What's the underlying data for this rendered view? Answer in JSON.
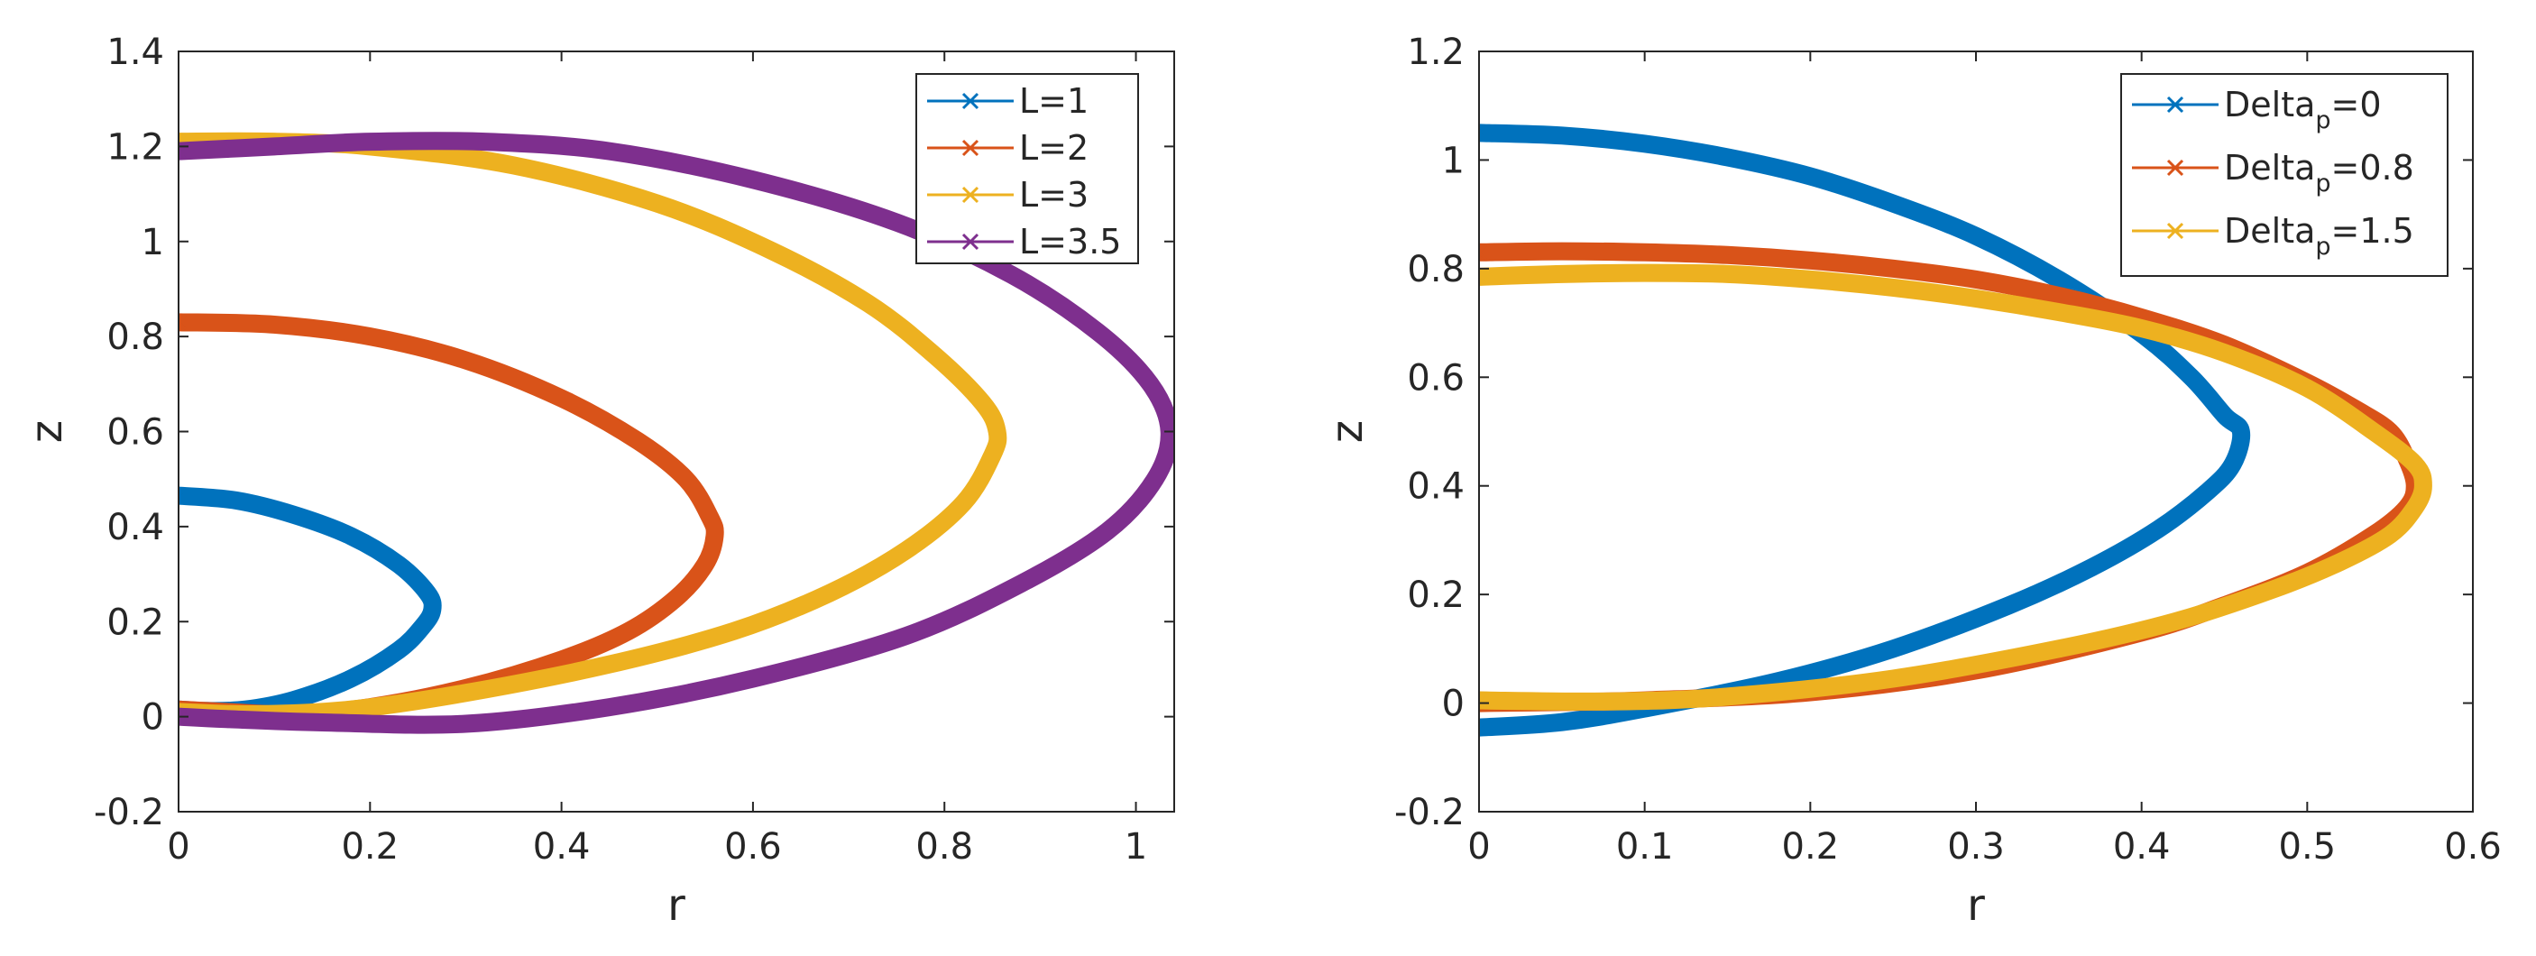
{
  "chart_data": [
    {
      "type": "line",
      "xlabel": "r",
      "ylabel": "z",
      "xlim": [
        0,
        1.04
      ],
      "ylim": [
        -0.2,
        1.4
      ],
      "xticks": [
        0,
        0.2,
        0.4,
        0.6,
        0.8,
        1
      ],
      "xtick_labels": [
        "0",
        "0.2",
        "0.4",
        "0.6",
        "0.8",
        "1"
      ],
      "yticks": [
        -0.2,
        0,
        0.2,
        0.4,
        0.6,
        0.8,
        1,
        1.2,
        1.4
      ],
      "ytick_labels": [
        "-0.2",
        "0",
        "0.2",
        "0.4",
        "0.6",
        "0.8",
        "1",
        "1.2",
        "1.4"
      ],
      "legend_position": "top-right",
      "series": [
        {
          "name": "L=1",
          "label": "L=1",
          "color": "#0072BD",
          "marker": "x",
          "points": [
            [
              0,
              0.465
            ],
            [
              0.06,
              0.455
            ],
            [
              0.12,
              0.425
            ],
            [
              0.18,
              0.38
            ],
            [
              0.23,
              0.32
            ],
            [
              0.26,
              0.26
            ],
            [
              0.265,
              0.225
            ],
            [
              0.255,
              0.19
            ],
            [
              0.23,
              0.14
            ],
            [
              0.18,
              0.08
            ],
            [
              0.12,
              0.035
            ],
            [
              0.07,
              0.015
            ],
            [
              0.03,
              0.012
            ],
            [
              0,
              0.015
            ]
          ]
        },
        {
          "name": "L=2",
          "label": "L=2",
          "color": "#D95319",
          "marker": "x",
          "points": [
            [
              0,
              0.83
            ],
            [
              0.1,
              0.825
            ],
            [
              0.2,
              0.8
            ],
            [
              0.3,
              0.75
            ],
            [
              0.4,
              0.67
            ],
            [
              0.48,
              0.58
            ],
            [
              0.53,
              0.5
            ],
            [
              0.555,
              0.42
            ],
            [
              0.56,
              0.38
            ],
            [
              0.55,
              0.32
            ],
            [
              0.52,
              0.25
            ],
            [
              0.47,
              0.18
            ],
            [
              0.4,
              0.12
            ],
            [
              0.3,
              0.06
            ],
            [
              0.2,
              0.02
            ],
            [
              0.12,
              0.005
            ],
            [
              0.05,
              0.01
            ],
            [
              0,
              0.015
            ]
          ]
        },
        {
          "name": "L=3",
          "label": "L=3",
          "color": "#EDB120",
          "marker": "x",
          "points": [
            [
              0,
              1.21
            ],
            [
              0.1,
              1.21
            ],
            [
              0.2,
              1.2
            ],
            [
              0.35,
              1.16
            ],
            [
              0.5,
              1.08
            ],
            [
              0.62,
              0.98
            ],
            [
              0.72,
              0.87
            ],
            [
              0.79,
              0.76
            ],
            [
              0.84,
              0.66
            ],
            [
              0.855,
              0.6
            ],
            [
              0.85,
              0.55
            ],
            [
              0.82,
              0.45
            ],
            [
              0.76,
              0.35
            ],
            [
              0.68,
              0.26
            ],
            [
              0.58,
              0.18
            ],
            [
              0.45,
              0.11
            ],
            [
              0.3,
              0.05
            ],
            [
              0.18,
              0.015
            ],
            [
              0.08,
              0.005
            ],
            [
              0,
              0.01
            ]
          ]
        },
        {
          "name": "L=3.5",
          "label": "L=3.5",
          "color": "#7E2F8E",
          "marker": "x",
          "points": [
            [
              0,
              1.19
            ],
            [
              0.1,
              1.2
            ],
            [
              0.2,
              1.21
            ],
            [
              0.32,
              1.21
            ],
            [
              0.45,
              1.19
            ],
            [
              0.6,
              1.13
            ],
            [
              0.75,
              1.04
            ],
            [
              0.87,
              0.93
            ],
            [
              0.96,
              0.81
            ],
            [
              1.015,
              0.7
            ],
            [
              1.035,
              0.6
            ],
            [
              1.02,
              0.5
            ],
            [
              0.97,
              0.39
            ],
            [
              0.88,
              0.28
            ],
            [
              0.76,
              0.17
            ],
            [
              0.6,
              0.08
            ],
            [
              0.45,
              0.02
            ],
            [
              0.3,
              -0.015
            ],
            [
              0.15,
              -0.012
            ],
            [
              0.05,
              -0.005
            ],
            [
              0,
              0
            ]
          ]
        }
      ]
    },
    {
      "type": "line",
      "xlabel": "r",
      "ylabel": "z",
      "xlim": [
        0,
        0.6
      ],
      "ylim": [
        -0.2,
        1.2
      ],
      "xticks": [
        0,
        0.1,
        0.2,
        0.3,
        0.4,
        0.5,
        0.6
      ],
      "xtick_labels": [
        "0",
        "0.1",
        "0.2",
        "0.3",
        "0.4",
        "0.5",
        "0.6"
      ],
      "yticks": [
        -0.2,
        0,
        0.2,
        0.4,
        0.6,
        0.8,
        1,
        1.2
      ],
      "ytick_labels": [
        "-0.2",
        "0",
        "0.2",
        "0.4",
        "0.6",
        "0.8",
        "1",
        "1.2"
      ],
      "legend_position": "top-right",
      "series": [
        {
          "name": "Delta_p=0",
          "label_main": "Delta",
          "label_sub": "p",
          "label_tail": "=0",
          "color": "#0072BD",
          "marker": "x",
          "points": [
            [
              0,
              1.05
            ],
            [
              0.05,
              1.045
            ],
            [
              0.1,
              1.03
            ],
            [
              0.15,
              1.005
            ],
            [
              0.2,
              0.97
            ],
            [
              0.25,
              0.92
            ],
            [
              0.3,
              0.86
            ],
            [
              0.35,
              0.78
            ],
            [
              0.4,
              0.68
            ],
            [
              0.43,
              0.6
            ],
            [
              0.45,
              0.53
            ],
            [
              0.46,
              0.5
            ],
            [
              0.455,
              0.44
            ],
            [
              0.44,
              0.39
            ],
            [
              0.41,
              0.32
            ],
            [
              0.37,
              0.25
            ],
            [
              0.32,
              0.18
            ],
            [
              0.25,
              0.1
            ],
            [
              0.18,
              0.04
            ],
            [
              0.1,
              -0.01
            ],
            [
              0.05,
              -0.035
            ],
            [
              0,
              -0.045
            ]
          ]
        },
        {
          "name": "Delta_p=0.8",
          "label_main": "Delta",
          "label_sub": "p",
          "label_tail": "=0.8",
          "color": "#D95319",
          "marker": "x",
          "points": [
            [
              0,
              0.83
            ],
            [
              0.05,
              0.832
            ],
            [
              0.1,
              0.83
            ],
            [
              0.15,
              0.825
            ],
            [
              0.2,
              0.815
            ],
            [
              0.25,
              0.8
            ],
            [
              0.3,
              0.78
            ],
            [
              0.35,
              0.75
            ],
            [
              0.4,
              0.71
            ],
            [
              0.45,
              0.66
            ],
            [
              0.5,
              0.59
            ],
            [
              0.53,
              0.54
            ],
            [
              0.55,
              0.5
            ],
            [
              0.56,
              0.45
            ],
            [
              0.565,
              0.4
            ],
            [
              0.56,
              0.36
            ],
            [
              0.54,
              0.31
            ],
            [
              0.5,
              0.24
            ],
            [
              0.45,
              0.18
            ],
            [
              0.4,
              0.13
            ],
            [
              0.3,
              0.06
            ],
            [
              0.2,
              0.02
            ],
            [
              0.1,
              0.005
            ],
            [
              0.05,
              0.002
            ],
            [
              0,
              0
            ]
          ]
        },
        {
          "name": "Delta_p=1.5",
          "label_main": "Delta",
          "label_sub": "p",
          "label_tail": "=1.5",
          "color": "#EDB120",
          "marker": "x",
          "points": [
            [
              0,
              0.785
            ],
            [
              0.05,
              0.79
            ],
            [
              0.1,
              0.792
            ],
            [
              0.15,
              0.79
            ],
            [
              0.2,
              0.78
            ],
            [
              0.25,
              0.765
            ],
            [
              0.3,
              0.745
            ],
            [
              0.35,
              0.72
            ],
            [
              0.4,
              0.69
            ],
            [
              0.45,
              0.645
            ],
            [
              0.5,
              0.58
            ],
            [
              0.54,
              0.5
            ],
            [
              0.565,
              0.44
            ],
            [
              0.57,
              0.4
            ],
            [
              0.565,
              0.36
            ],
            [
              0.55,
              0.31
            ],
            [
              0.52,
              0.26
            ],
            [
              0.48,
              0.21
            ],
            [
              0.42,
              0.15
            ],
            [
              0.35,
              0.1
            ],
            [
              0.25,
              0.045
            ],
            [
              0.15,
              0.012
            ],
            [
              0.08,
              0.003
            ],
            [
              0,
              0.005
            ]
          ]
        }
      ]
    }
  ]
}
